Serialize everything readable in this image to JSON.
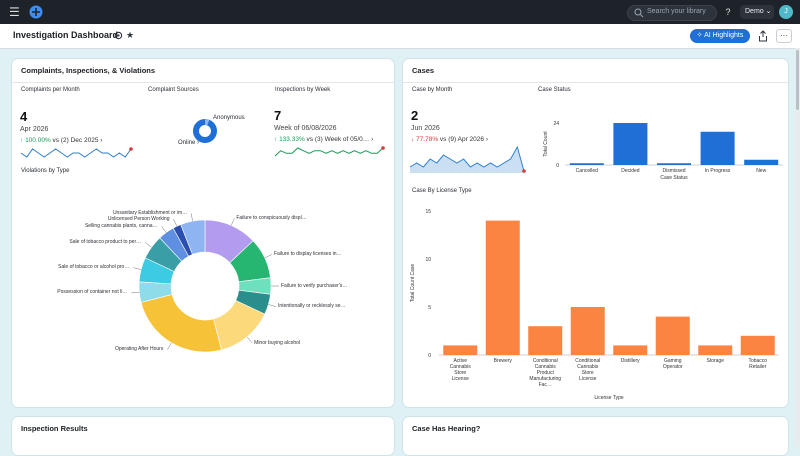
{
  "topbar": {
    "search_placeholder": "Search your library",
    "help_label": "?",
    "user_label": "Demo",
    "avatar_letter": "J"
  },
  "header": {
    "title": "Investigation Dashboard",
    "ai_button": "AI Highlights",
    "more_label": "···"
  },
  "left_panel": {
    "title": "Complaints, Inspections, & Violations",
    "complaints": {
      "label": "Complaints per Month",
      "value": "4",
      "period": "Apr 2026",
      "change": "100.00%",
      "compare": "vs (2) Dec 2025",
      "arrow": "›",
      "trend": [
        3,
        2,
        4,
        3,
        2,
        3,
        4,
        3,
        2,
        3,
        3,
        2,
        3,
        4,
        3,
        3,
        2,
        3,
        2,
        4
      ]
    },
    "sources": {
      "label": "Complaint Sources",
      "anon": "Anonymous",
      "online": "Online",
      "arrow": "›",
      "anon_share": 0.06
    },
    "inspections": {
      "label": "Inspections by Week",
      "value": "7",
      "period": "Week of 06/08/2026",
      "change": "133.33%",
      "compare": "vs (3) Week of 05/0…",
      "arrow": "›",
      "trend": [
        4,
        6,
        5,
        5,
        7,
        6,
        5,
        6,
        6,
        5,
        6,
        5,
        6,
        5,
        6,
        5,
        6,
        5,
        5,
        7
      ]
    },
    "violations": {
      "label": "Violations by Type",
      "slices": [
        {
          "name": "Failure to conspicuously displ…",
          "value": 13,
          "color": "#b39cf0"
        },
        {
          "name": "Failure to display licenses in…",
          "value": 10,
          "color": "#26b672"
        },
        {
          "name": "Failure to verify purchaser's…",
          "value": 4,
          "color": "#6ee0bd"
        },
        {
          "name": "Intentionally or recklessly se…",
          "value": 5,
          "color": "#2a8f8c"
        },
        {
          "name": "Minor buying alcohol",
          "value": 14,
          "color": "#fcd97a"
        },
        {
          "name": "Operating After Hours",
          "value": 25,
          "color": "#f6c338"
        },
        {
          "name": "Possession of container not li…",
          "value": 5,
          "color": "#8edcea"
        },
        {
          "name": "Sale of tobacco or alcohol pro…",
          "value": 6,
          "color": "#3ccbe3"
        },
        {
          "name": "Sale of tobacco product to per…",
          "value": 6,
          "color": "#3a9ea6"
        },
        {
          "name": "Selling cannabis plants, canna…",
          "value": 4,
          "color": "#5e8fe0"
        },
        {
          "name": "Unlicensed Person Working",
          "value": 2,
          "color": "#2b4fb0"
        },
        {
          "name": "Unsanitary Establishment or im…",
          "value": 6,
          "color": "#8fb4f2"
        }
      ]
    }
  },
  "right_panel": {
    "title": "Cases",
    "by_month": {
      "label": "Case by Month",
      "value": "2",
      "period": "Jun 2026",
      "change": "77.78%",
      "compare": "vs (9) Apr 2026",
      "arrow": "›",
      "trend": [
        3,
        4,
        3,
        5,
        4,
        6,
        5,
        4,
        5,
        3,
        4,
        3,
        4,
        3,
        4,
        5,
        8,
        2
      ]
    },
    "status": {
      "label": "Case Status",
      "ylabel": "Total Count",
      "xlabel": "Case Status",
      "max_tick": "24",
      "zero_tick": "0",
      "categories": [
        "Cancelled",
        "Decided",
        "Dismissed",
        "In Progress",
        "New"
      ],
      "values": [
        1,
        24,
        1,
        19,
        3
      ],
      "ylim": [
        0,
        24
      ],
      "color": "#1f6fd6"
    },
    "license": {
      "label": "Case By License Type",
      "ylabel": "Total Count Case",
      "xlabel": "License Type",
      "ticks": [
        "15",
        "10",
        "5",
        "0"
      ],
      "categories": [
        "Active Cannabis Store License",
        "Brewery",
        "Conditional Cannabis Product Manufacturing Fac…",
        "Conditional Cannabis Store License",
        "Distillery",
        "Gaming Operator",
        "Storage",
        "Tobacco Retailer"
      ],
      "wrapped": [
        [
          "Active",
          "Cannabis",
          "Store",
          "License"
        ],
        [
          "Brewery"
        ],
        [
          "Conditional",
          "Cannabis",
          "Product",
          "Manufacturing",
          "Fac…"
        ],
        [
          "Conditional",
          "Cannabis",
          "Store",
          "License"
        ],
        [
          "Distillery"
        ],
        [
          "Gaming",
          "Operator"
        ],
        [
          "Storage"
        ],
        [
          "Tobacco",
          "Retailer"
        ]
      ],
      "values": [
        1,
        14,
        3,
        5,
        1,
        4,
        1,
        2
      ],
      "ylim": [
        0,
        15
      ],
      "color": "#fb8442"
    }
  },
  "bottom": {
    "left_title": "Inspection Results",
    "right_title": "Case Has Hearing?"
  }
}
